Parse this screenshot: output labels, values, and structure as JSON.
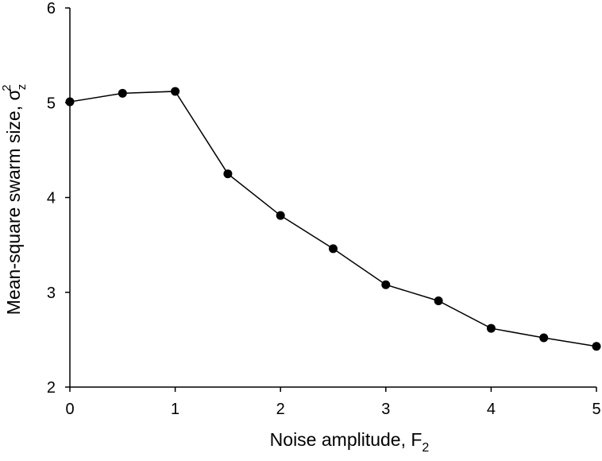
{
  "chart_data": {
    "type": "line",
    "xlabel": {
      "main": "Noise amplitude, F",
      "subscript": "2"
    },
    "ylabel": {
      "main": "Mean-square swarm size, σ",
      "superscript": "2",
      "subscript": "z"
    },
    "xlim": [
      0,
      5
    ],
    "ylim": [
      2,
      6
    ],
    "xticks": [
      "0",
      "1",
      "2",
      "3",
      "4",
      "5"
    ],
    "yticks": [
      "2",
      "3",
      "4",
      "5",
      "6"
    ],
    "grid": false,
    "series": [
      {
        "x": [
          0,
          0.5,
          1,
          1.5,
          2,
          2.5,
          3,
          3.5,
          4,
          4.5,
          5
        ],
        "y": [
          5.01,
          5.1,
          5.12,
          4.25,
          3.81,
          3.46,
          3.08,
          2.91,
          2.62,
          2.52,
          2.43
        ],
        "color": "#000000",
        "marker": "filled-circle"
      }
    ]
  }
}
